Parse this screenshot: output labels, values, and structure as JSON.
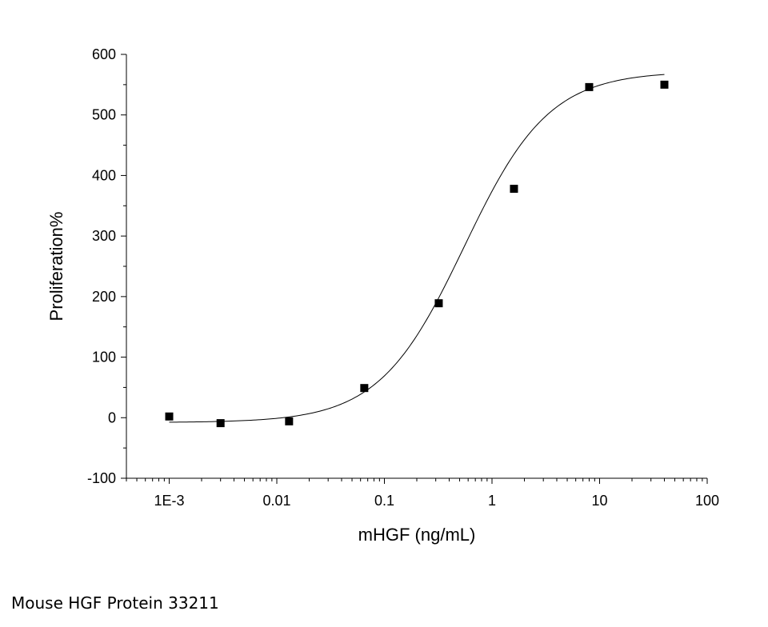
{
  "caption": "Mouse HGF Protein 33211",
  "chart_data": {
    "type": "scatter",
    "title": "",
    "xlabel": "mHGF (ng/mL)",
    "ylabel": "Proliferation%",
    "xscale": "log",
    "xlim": [
      0.0004,
      100
    ],
    "ylim": [
      -100,
      600
    ],
    "xticks": [
      0.001,
      0.01,
      0.1,
      1,
      10,
      100
    ],
    "xtick_labels": [
      "1E-3",
      "0.01",
      "0.1",
      "1",
      "10",
      "100"
    ],
    "yticks": [
      -100,
      0,
      100,
      200,
      300,
      400,
      500,
      600
    ],
    "ytick_labels": [
      "-100",
      "0",
      "100",
      "200",
      "300",
      "400",
      "500",
      "600"
    ],
    "grid": false,
    "series": [
      {
        "marker": "square",
        "color": "#000000",
        "x": [
          0.001,
          0.003,
          0.013,
          0.065,
          0.32,
          1.6,
          8,
          40
        ],
        "y": [
          2,
          -9,
          -6,
          49,
          189,
          378,
          546,
          550
        ]
      }
    ],
    "fit_curve": {
      "model": "4PL",
      "color": "#000000",
      "bottom": -8,
      "top": 572,
      "ec50": 0.55,
      "hill": 1.1,
      "x_range": [
        0.001,
        40
      ]
    }
  }
}
